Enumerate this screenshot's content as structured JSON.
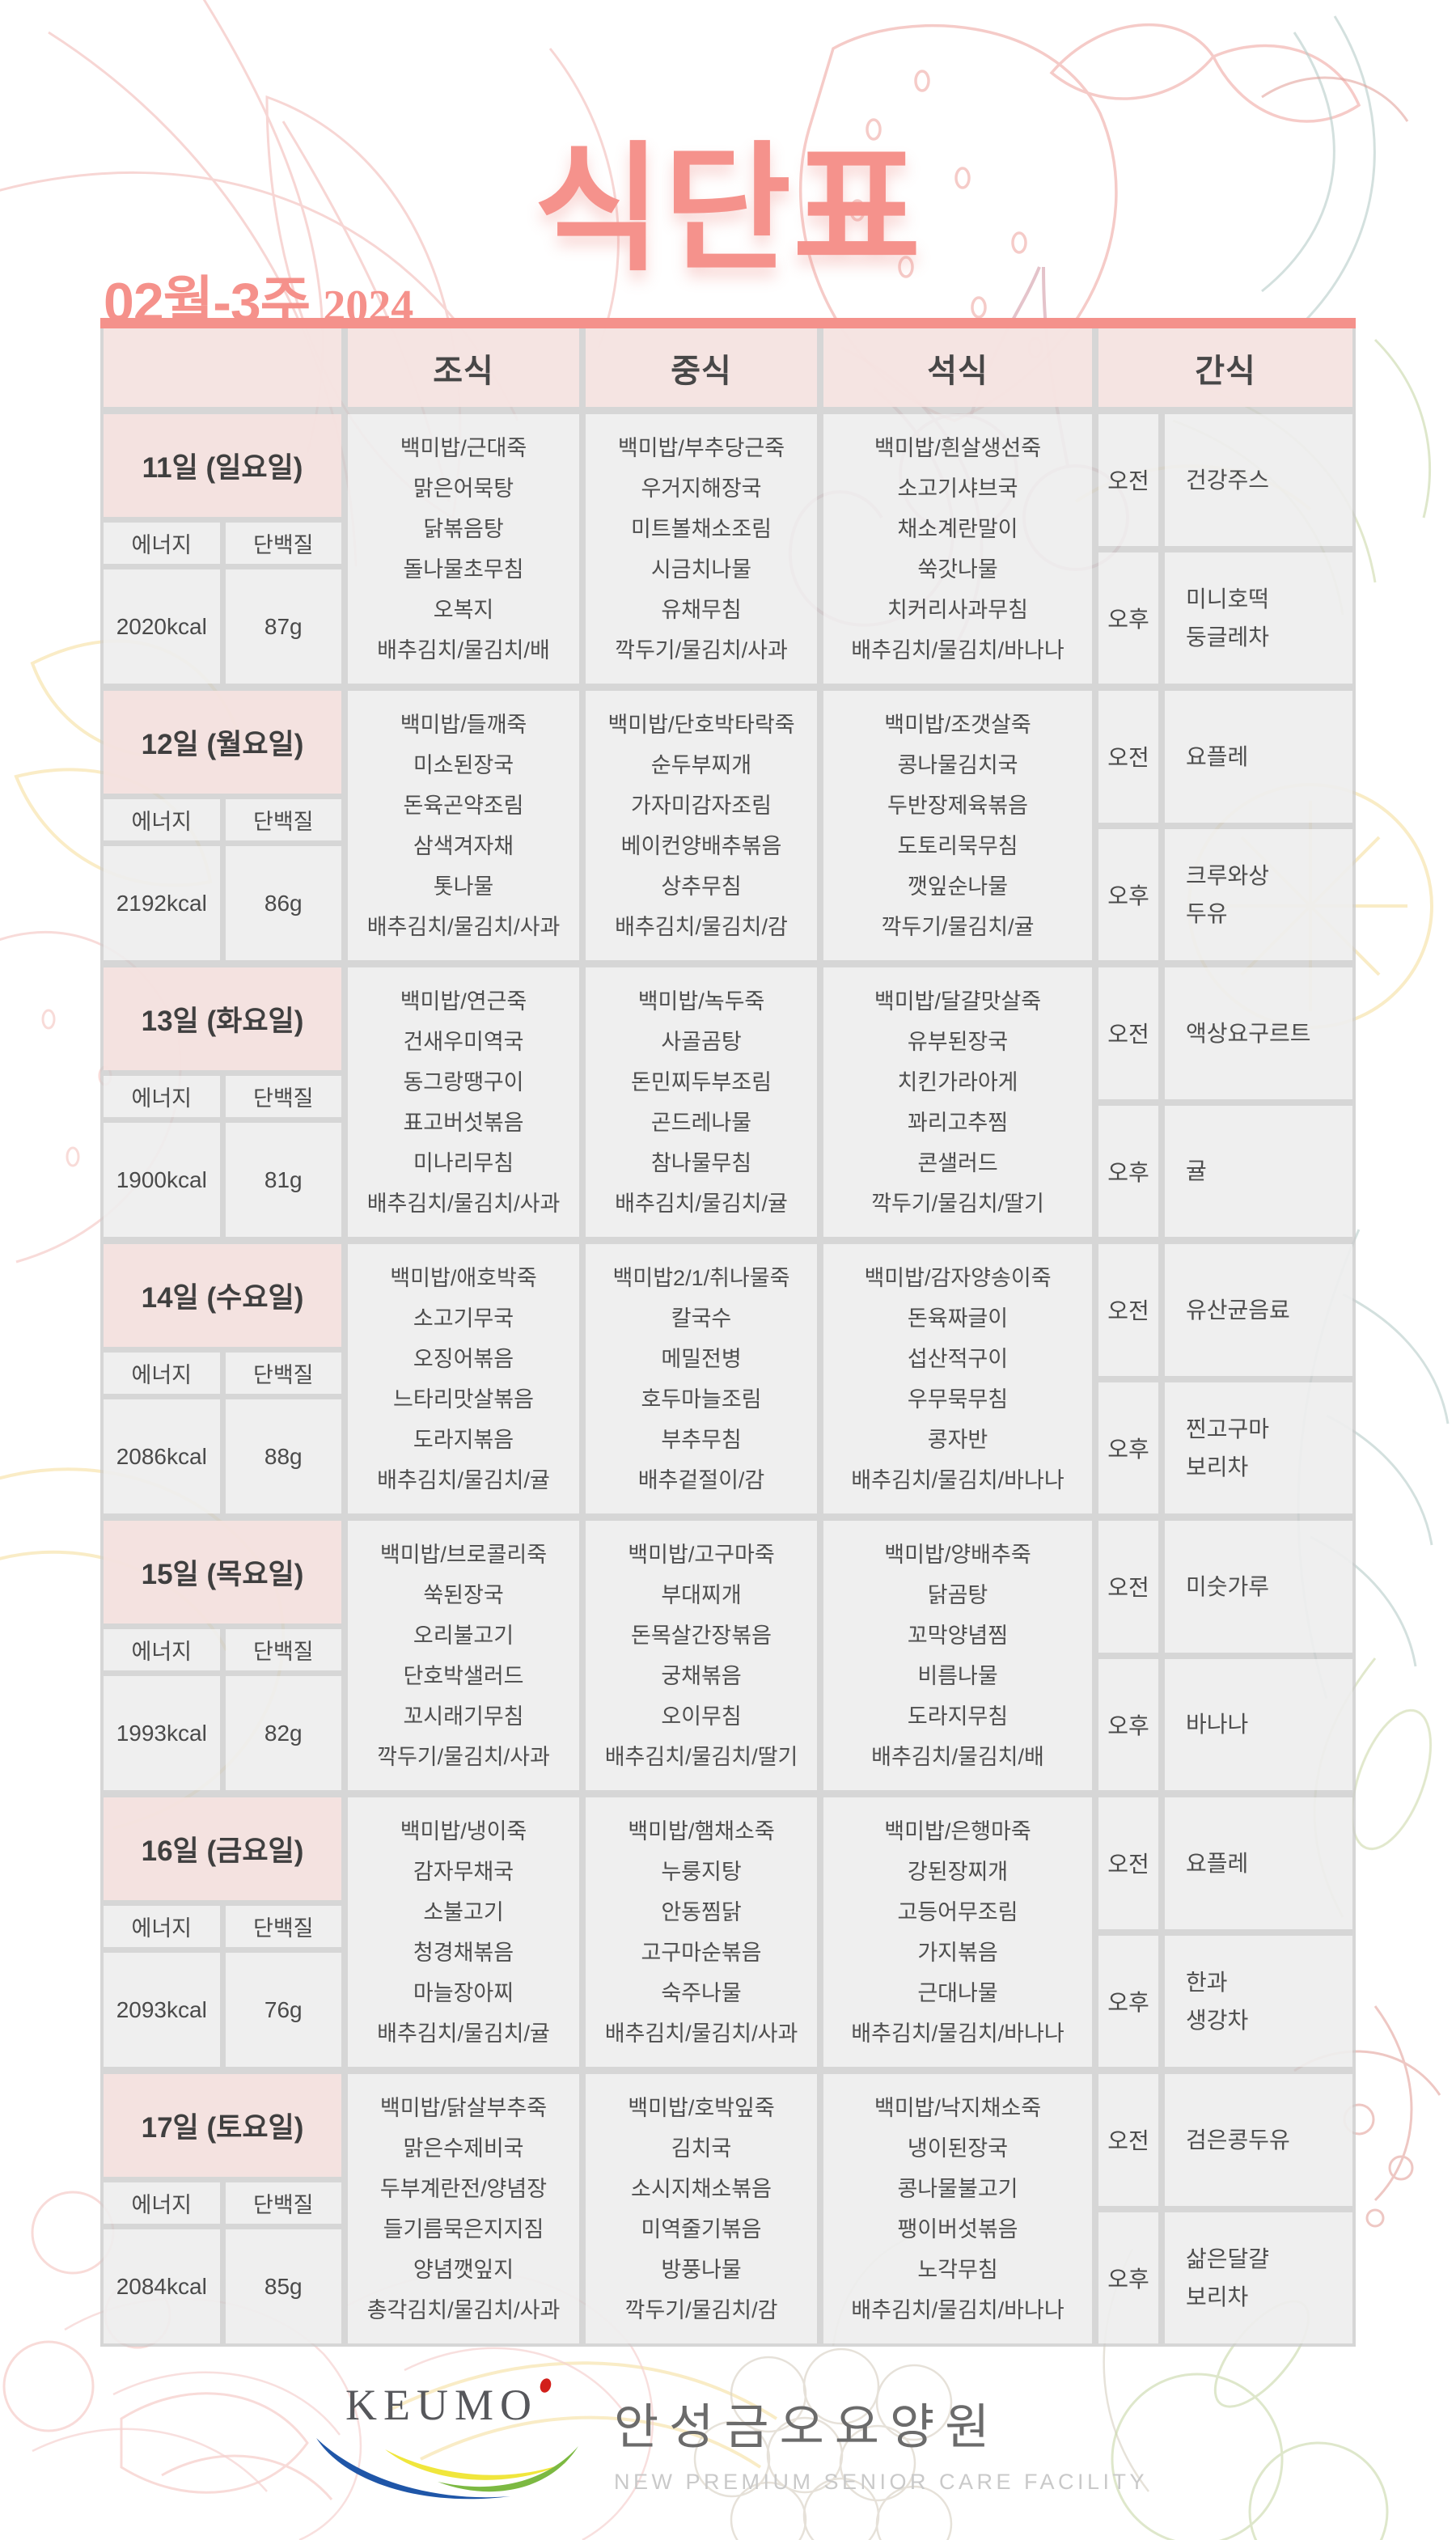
{
  "title": "식단표",
  "period": {
    "week": "02월-3주",
    "year": "2024"
  },
  "columns": {
    "breakfast": "조식",
    "lunch": "중식",
    "dinner": "석식",
    "snack": "간식"
  },
  "labels": {
    "energy": "에너지",
    "protein": "단백질",
    "morning": "오전",
    "afternoon": "오후"
  },
  "days": [
    {
      "day": "11일 (일요일)",
      "energy": "2020kcal",
      "protein": "87g",
      "breakfast": [
        "백미밥/근대죽",
        "맑은어묵탕",
        "닭볶음탕",
        "돌나물초무침",
        "오복지",
        "배추김치/물김치/배"
      ],
      "lunch": [
        "백미밥/부추당근죽",
        "우거지해장국",
        "미트볼채소조림",
        "시금치나물",
        "유채무침",
        "깍두기/물김치/사과"
      ],
      "dinner": [
        "백미밥/흰살생선죽",
        "소고기샤브국",
        "채소계란말이",
        "쑥갓나물",
        "치커리사과무침",
        "배추김치/물김치/바나나"
      ],
      "snack_am": [
        "건강주스"
      ],
      "snack_pm": [
        "미니호떡",
        "둥글레차"
      ]
    },
    {
      "day": "12일 (월요일)",
      "energy": "2192kcal",
      "protein": "86g",
      "breakfast": [
        "백미밥/들깨죽",
        "미소된장국",
        "돈육곤약조림",
        "삼색겨자채",
        "톳나물",
        "배추김치/물김치/사과"
      ],
      "lunch": [
        "백미밥/단호박타락죽",
        "순두부찌개",
        "가자미감자조림",
        "베이컨양배추볶음",
        "상추무침",
        "배추김치/물김치/감"
      ],
      "dinner": [
        "백미밥/조갯살죽",
        "콩나물김치국",
        "두반장제육볶음",
        "도토리묵무침",
        "깻잎순나물",
        "깍두기/물김치/귤"
      ],
      "snack_am": [
        "요플레"
      ],
      "snack_pm": [
        "크루와상",
        "두유"
      ]
    },
    {
      "day": "13일 (화요일)",
      "energy": "1900kcal",
      "protein": "81g",
      "breakfast": [
        "백미밥/연근죽",
        "건새우미역국",
        "동그랑땡구이",
        "표고버섯볶음",
        "미나리무침",
        "배추김치/물김치/사과"
      ],
      "lunch": [
        "백미밥/녹두죽",
        "사골곰탕",
        "돈민찌두부조림",
        "곤드레나물",
        "참나물무침",
        "배추김치/물김치/귤"
      ],
      "dinner": [
        "백미밥/달걀맛살죽",
        "유부된장국",
        "치킨가라아게",
        "꽈리고추찜",
        "콘샐러드",
        "깍두기/물김치/딸기"
      ],
      "snack_am": [
        "액상요구르트"
      ],
      "snack_pm": [
        "귤"
      ]
    },
    {
      "day": "14일 (수요일)",
      "energy": "2086kcal",
      "protein": "88g",
      "breakfast": [
        "백미밥/애호박죽",
        "소고기무국",
        "오징어볶음",
        "느타리맛살볶음",
        "도라지볶음",
        "배추김치/물김치/귤"
      ],
      "lunch": [
        "백미밥2/1/취나물죽",
        "칼국수",
        "메밀전병",
        "호두마늘조림",
        "부추무침",
        "배추겉절이/감"
      ],
      "dinner": [
        "백미밥/감자양송이죽",
        "돈육짜글이",
        "섭산적구이",
        "우무묵무침",
        "콩자반",
        "배추김치/물김치/바나나"
      ],
      "snack_am": [
        "유산균음료"
      ],
      "snack_pm": [
        "찐고구마",
        "보리차"
      ]
    },
    {
      "day": "15일 (목요일)",
      "energy": "1993kcal",
      "protein": "82g",
      "breakfast": [
        "백미밥/브로콜리죽",
        "쑥된장국",
        "오리불고기",
        "단호박샐러드",
        "꼬시래기무침",
        "깍두기/물김치/사과"
      ],
      "lunch": [
        "백미밥/고구마죽",
        "부대찌개",
        "돈목살간장볶음",
        "궁채볶음",
        "오이무침",
        "배추김치/물김치/딸기"
      ],
      "dinner": [
        "백미밥/양배추죽",
        "닭곰탕",
        "꼬막양념찜",
        "비름나물",
        "도라지무침",
        "배추김치/물김치/배"
      ],
      "snack_am": [
        "미숫가루"
      ],
      "snack_pm": [
        "바나나"
      ]
    },
    {
      "day": "16일 (금요일)",
      "energy": "2093kcal",
      "protein": "76g",
      "breakfast": [
        "백미밥/냉이죽",
        "감자무채국",
        "소불고기",
        "청경채볶음",
        "마늘장아찌",
        "배추김치/물김치/귤"
      ],
      "lunch": [
        "백미밥/햄채소죽",
        "누룽지탕",
        "안동찜닭",
        "고구마순볶음",
        "숙주나물",
        "배추김치/물김치/사과"
      ],
      "dinner": [
        "백미밥/은행마죽",
        "강된장찌개",
        "고등어무조림",
        "가지볶음",
        "근대나물",
        "배추김치/물김치/바나나"
      ],
      "snack_am": [
        "요플레"
      ],
      "snack_pm": [
        "한과",
        "생강차"
      ]
    },
    {
      "day": "17일 (토요일)",
      "energy": "2084kcal",
      "protein": "85g",
      "breakfast": [
        "백미밥/닭살부추죽",
        "맑은수제비국",
        "두부계란전/양념장",
        "들기름묵은지지짐",
        "양념깻잎지",
        "총각김치/물김치/사과"
      ],
      "lunch": [
        "백미밥/호박잎죽",
        "김치국",
        "소시지채소볶음",
        "미역줄기볶음",
        "방풍나물",
        "깍두기/물김치/감"
      ],
      "dinner": [
        "백미밥/낙지채소죽",
        "냉이된장국",
        "콩나물불고기",
        "팽이버섯볶음",
        "노각무침",
        "배추김치/물김치/바나나"
      ],
      "snack_am": [
        "검은콩두유"
      ],
      "snack_pm": [
        "삶은달걀",
        "보리차"
      ]
    }
  ],
  "footer": {
    "logo": "KEUMO",
    "facility": "안성금오요양원",
    "subtitle": "NEW PREMIUM SENIOR CARE FACILITY"
  },
  "colors": {
    "accent_salmon": "#f4918b",
    "header_pink": "#f9e7e5",
    "grid_gray": "#d9d9d9",
    "text_gray": "#4e4e4e",
    "logo_blue": "#1f56a8",
    "logo_yellow": "#f0e63c",
    "logo_green": "#7cb942",
    "logo_red": "#d21f1a"
  }
}
